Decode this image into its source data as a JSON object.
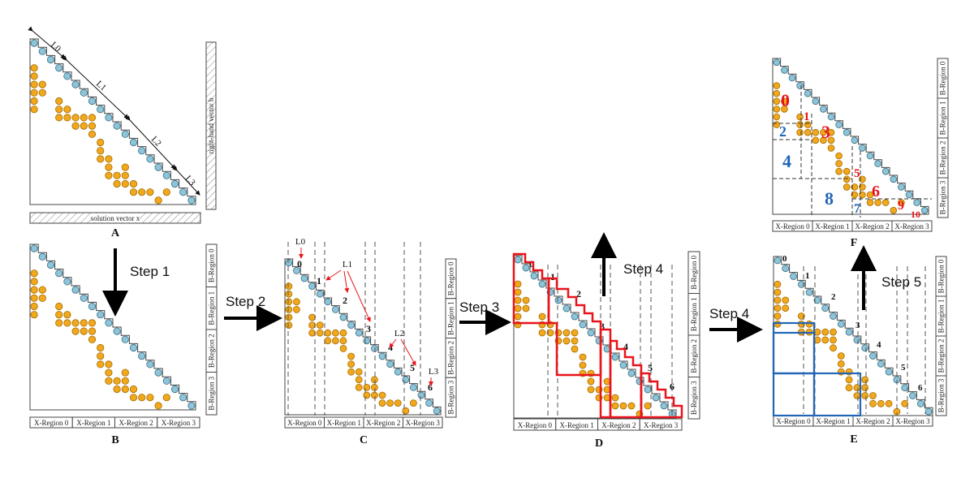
{
  "panels": {
    "A": {
      "letter": "A",
      "bottom_bar": "solution vector x",
      "side_bar": "right-hand vector b",
      "levels": [
        "L0",
        "L1",
        "L2",
        "L3"
      ]
    },
    "B": {
      "letter": "B"
    },
    "C": {
      "letter": "C",
      "levels": [
        "L0",
        "L1",
        "L2",
        "L3"
      ]
    },
    "D": {
      "letter": "D"
    },
    "E": {
      "letter": "E"
    },
    "F": {
      "letter": "F"
    }
  },
  "x_regions": [
    "X-Region 0",
    "X-Region 1",
    "X-Region 2",
    "X-Region 3"
  ],
  "b_regions": [
    "B-Region 0",
    "B-Region 1",
    "B-Region 2",
    "B-Region 3"
  ],
  "level_numbers": [
    "0",
    "1",
    "2",
    "3",
    "4",
    "5",
    "6"
  ],
  "steps": {
    "s1": "Step 1",
    "s2": "Step 2",
    "s3": "Step 3",
    "s4a": "Step 4",
    "s4b": "Step 4",
    "s5": "Step 5"
  },
  "blocks_F": [
    "0",
    "1",
    "2",
    "3",
    "4",
    "5",
    "6",
    "7",
    "8",
    "9",
    "10"
  ],
  "colors": {
    "diag": "#8ec4d8",
    "offdiag": "#f2a81d",
    "red": "#e8141b",
    "blue": "#2266b5",
    "stroke": "#444444"
  }
}
